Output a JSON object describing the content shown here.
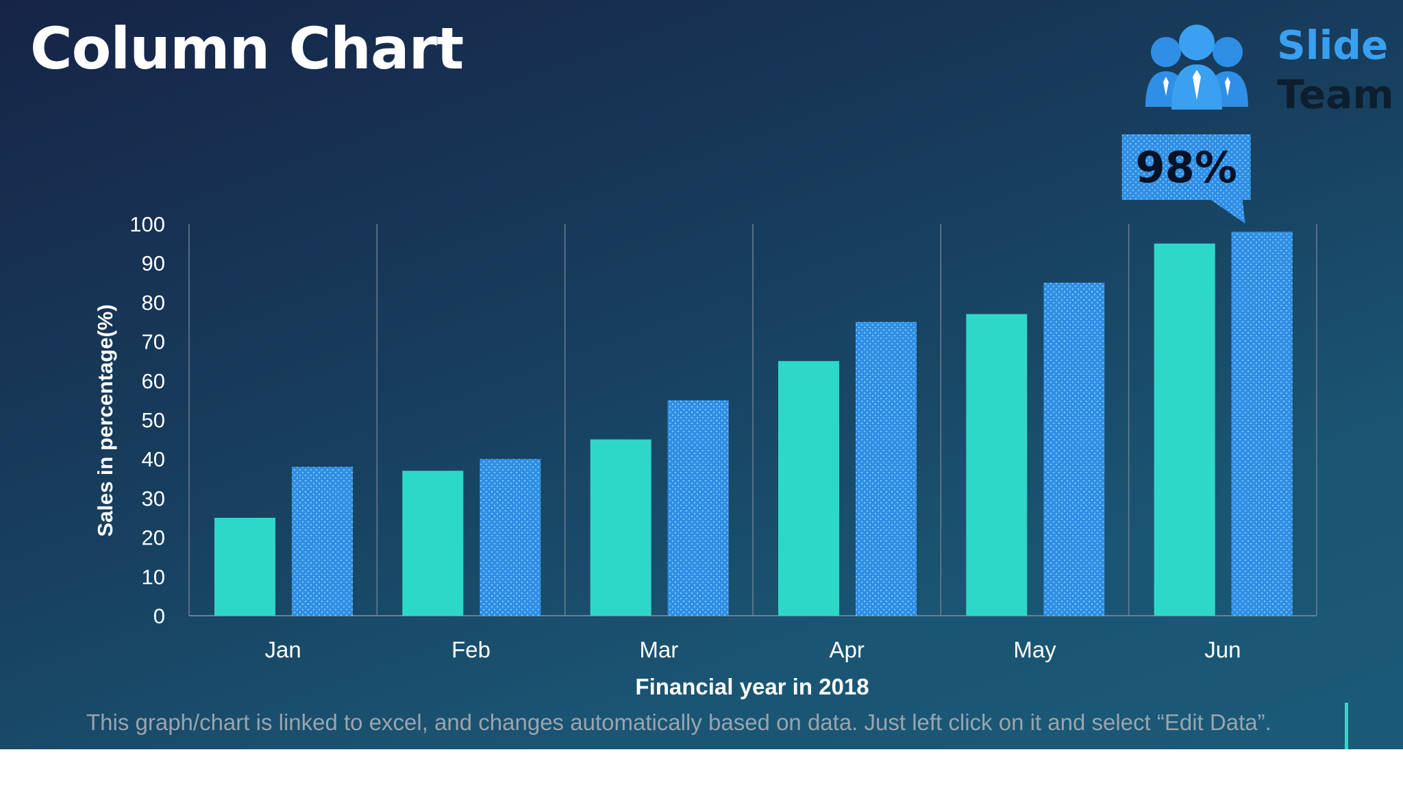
{
  "slide": {
    "title": "Column Chart",
    "footnote": "This graph/chart is linked to excel, and changes automatically based on data. Just left click on it and select “Edit Data”."
  },
  "logo": {
    "line1": "Slide",
    "line2": "Team"
  },
  "colors": {
    "series1": "#2ed8c9",
    "series2": "#2f8fe6",
    "callout": "#2f8fe6",
    "axis": "#6b7f93",
    "text": "#ffffff"
  },
  "chart_data": {
    "type": "bar",
    "categories": [
      "Jan",
      "Feb",
      "Mar",
      "Apr",
      "May",
      "Jun"
    ],
    "series": [
      {
        "values": [
          25,
          37,
          45,
          65,
          77,
          95
        ],
        "color": "#2ed8c9",
        "pattern": "solid"
      },
      {
        "values": [
          38,
          40,
          55,
          75,
          85,
          98
        ],
        "color": "#2f8fe6",
        "pattern": "dotted"
      }
    ],
    "xlabel": "Financial year in 2018",
    "ylabel": "Sales in percentage(%)",
    "ylim": [
      0,
      100
    ],
    "yticks": [
      0,
      10,
      20,
      30,
      40,
      50,
      60,
      70,
      80,
      90,
      100
    ],
    "grid": "vertical category separators",
    "annotation": {
      "text": "98%",
      "category": "Jun",
      "series": 1
    }
  }
}
